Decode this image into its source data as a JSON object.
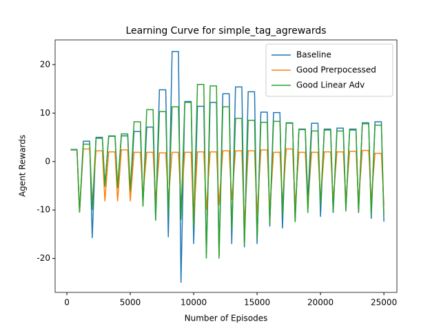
{
  "chart_data": {
    "type": "line",
    "title": "Learning Curve for simple_tag_agrewards",
    "x_label": "Number of Episodes",
    "y_label": "Agent Rewards",
    "x": [
      300,
      800,
      1000,
      1300,
      1800,
      2000,
      2300,
      2800,
      3000,
      3300,
      3800,
      4000,
      4300,
      4800,
      5000,
      5300,
      5800,
      6000,
      6300,
      6800,
      7000,
      7300,
      7800,
      8000,
      8300,
      8800,
      9000,
      9300,
      9800,
      10000,
      10300,
      10800,
      11000,
      11300,
      11800,
      12000,
      12300,
      12800,
      13000,
      13300,
      13800,
      14000,
      14300,
      14800,
      15000,
      15300,
      15800,
      16000,
      16300,
      16800,
      17000,
      17300,
      17800,
      18000,
      18300,
      18800,
      19000,
      19300,
      19800,
      20000,
      20300,
      20800,
      21000,
      21300,
      21800,
      22000,
      22300,
      22800,
      23000,
      23300,
      23800,
      24000,
      24300,
      24800,
      25000
    ],
    "series": [
      {
        "name": "Baseline",
        "color": "#1f77b4",
        "values": [
          2.5,
          2.5,
          -10.5,
          4.2,
          4.2,
          -15.8,
          5.0,
          5.0,
          -5,
          5.2,
          5.2,
          -5.5,
          5.3,
          5.3,
          -7,
          6.2,
          6.2,
          -9,
          7.1,
          7.1,
          -12,
          14.8,
          14.8,
          -15.6,
          22.7,
          22.7,
          -25,
          12.4,
          12.4,
          -17,
          11.4,
          11.4,
          -19,
          12.2,
          12.2,
          -19.5,
          14.0,
          14.0,
          -17,
          15.4,
          15.4,
          -17.7,
          14.4,
          14.4,
          -17,
          10.2,
          10.2,
          -13.4,
          10.1,
          10.1,
          -13.8,
          8.0,
          8.0,
          -12.4,
          6.7,
          6.7,
          -8,
          7.9,
          7.9,
          -11.4,
          6.7,
          6.7,
          -10.6,
          6.9,
          6.9,
          -10,
          6.7,
          6.7,
          -10.6,
          8.0,
          8.0,
          -11.8,
          8.2,
          8.2,
          -12.4
        ]
      },
      {
        "name": "Good Prerpocessed",
        "color": "#ff7f0e",
        "values": [
          2.4,
          2.4,
          -10.5,
          2.6,
          2.6,
          -9,
          2.2,
          2.2,
          -8.2,
          2.0,
          2.0,
          -8.2,
          2.4,
          2.4,
          -8.2,
          1.9,
          1.9,
          -7,
          1.9,
          1.9,
          -8,
          1.8,
          1.8,
          -8,
          1.9,
          1.9,
          -9,
          1.9,
          1.9,
          -13,
          2.0,
          2.0,
          -10,
          2.0,
          2.0,
          -9,
          2.2,
          2.2,
          -8,
          2.2,
          2.2,
          -13,
          2.2,
          2.2,
          -11,
          2.4,
          2.4,
          -10,
          1.9,
          1.9,
          -9,
          2.6,
          2.6,
          -9,
          1.9,
          1.9,
          -9,
          1.9,
          1.9,
          -8,
          2.0,
          2.0,
          -8,
          2.0,
          2.0,
          -8,
          2.1,
          2.1,
          -8,
          2.3,
          2.3,
          -8,
          1.7,
          1.7,
          -9
        ]
      },
      {
        "name": "Good Linear Adv",
        "color": "#2ca02c",
        "values": [
          2.4,
          2.4,
          -10.5,
          3.6,
          3.6,
          -10,
          4.8,
          4.8,
          -5.2,
          5.3,
          5.3,
          -5.5,
          5.7,
          5.7,
          -6,
          8.2,
          8.2,
          -9.3,
          10.7,
          10.7,
          -12.2,
          10.3,
          10.3,
          -11,
          11.3,
          11.3,
          -12,
          12.2,
          12.2,
          -13.5,
          15.9,
          15.9,
          -20,
          15.6,
          15.6,
          -20,
          11.3,
          11.3,
          -14,
          8.9,
          8.9,
          -17.3,
          8.5,
          8.5,
          -16,
          8.1,
          8.1,
          -13,
          8.3,
          8.3,
          -11,
          7.9,
          7.9,
          -12.5,
          6.6,
          6.6,
          -10.6,
          6.3,
          6.3,
          -9,
          6.5,
          6.5,
          -10.4,
          6.3,
          6.3,
          -10.3,
          6.5,
          6.5,
          -10.4,
          7.8,
          7.8,
          -11,
          7.5,
          7.5,
          -11
        ]
      }
    ],
    "xlim": [
      -925,
      26025
    ],
    "ylim": [
      -27,
      25.1
    ],
    "xticks": [
      0,
      5000,
      10000,
      15000,
      20000,
      25000
    ],
    "yticks": [
      -20,
      -10,
      0,
      10,
      20
    ],
    "legend": "upper right"
  }
}
